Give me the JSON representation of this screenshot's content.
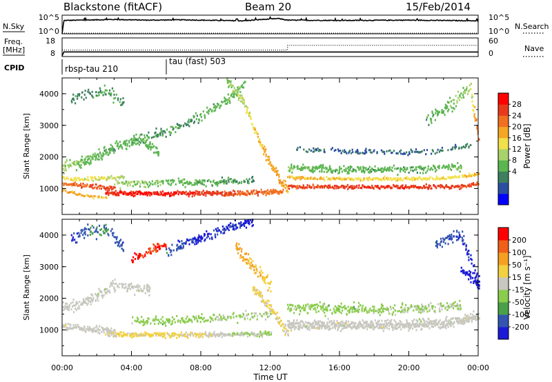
{
  "header": {
    "station": "Blackstone (fitACF)",
    "beam": "Beam 20",
    "date": "15/Feb/2014"
  },
  "top_panels": {
    "nsky_label": "N.Sky",
    "nsearch_label": "N.Search",
    "nsky_ticks": [
      "10^5",
      "10^0"
    ],
    "nsearch_ticks": [
      "10^5",
      "10^0"
    ],
    "freq_label": [
      "Freq.",
      "[MHz]"
    ],
    "freq_ticks": [
      "18",
      "8"
    ],
    "nave_label": "Nave",
    "nave_ticks": [
      "60",
      "0"
    ],
    "cpid_label": "CPID",
    "cpid_segments": [
      {
        "label": "rbsp-tau 210",
        "start_hour": 0
      },
      {
        "label": "tau (fast) 503",
        "start_hour": 6
      }
    ]
  },
  "colorbars": {
    "power": {
      "label": "Power [dB]",
      "ticks": [
        "28",
        "24",
        "20",
        "16",
        "12",
        "8",
        "4"
      ],
      "colors": [
        "#0000ff",
        "#2a4fa0",
        "#3d7f5f",
        "#5bb550",
        "#a8d26a",
        "#f2e04a",
        "#f5a623",
        "#f07020",
        "#e83a1a",
        "#ff0000"
      ]
    },
    "velocity": {
      "label": "Velocity [m s⁻¹]",
      "ticks": [
        "200",
        "100",
        "50",
        "15",
        "-15",
        "-50",
        "-100",
        "-200"
      ],
      "colors": [
        "#1a1ad8",
        "#3355b0",
        "#4aa048",
        "#8acc4c",
        "#c8c8c0",
        "#f2d040",
        "#f5a020",
        "#f06018",
        "#ff0000"
      ]
    }
  },
  "axes": {
    "ylabel": "Slant Range [km]",
    "xlabel": "Time UT",
    "y_ticks": [
      "4000",
      "3000",
      "2000",
      "1000"
    ],
    "x_ticks": [
      "00:00",
      "04:00",
      "08:00",
      "12:00",
      "16:00",
      "20:00",
      "00:00"
    ]
  },
  "chart_data": [
    {
      "type": "line",
      "title": "",
      "series": [
        {
          "name": "N.Sky",
          "x_hours": [
            0,
            0.1,
            1,
            3,
            5,
            7,
            9,
            10.5,
            11.5,
            12.5,
            13,
            16,
            20,
            24
          ],
          "values_log10": [
            0,
            4.2,
            4.3,
            4.5,
            4.3,
            4.4,
            4.2,
            4.1,
            4.5,
            4.8,
            4.3,
            4.2,
            4.3,
            4.1
          ]
        },
        {
          "name": "N.Search",
          "x_hours": [
            0,
            24
          ],
          "values_log10": [
            0,
            0
          ]
        }
      ],
      "ylim": [
        0,
        5
      ]
    },
    {
      "type": "line",
      "title": "",
      "series": [
        {
          "name": "Freq.",
          "x_hours": [
            0,
            0.1,
            6,
            13,
            24
          ],
          "values": [
            8,
            10.5,
            10.4,
            10.4,
            10.4
          ]
        },
        {
          "name": "Nave",
          "x_hours": [
            0,
            13,
            13.01,
            24
          ],
          "values": [
            22,
            22,
            40,
            40
          ]
        }
      ],
      "freq_ylim": [
        8,
        18
      ],
      "nave_ylim": [
        0,
        60
      ]
    },
    {
      "type": "heatmap",
      "title": "",
      "xlabel": "Time UT",
      "ylabel": "Slant Range [km]",
      "xlim_hours": [
        0,
        24
      ],
      "ylim_km": [
        180,
        4500
      ],
      "colorbar": "Power [dB]",
      "scatter_bands": [
        {
          "t": [
            0.0,
            1.5,
            3.0,
            4.5,
            5.5
          ],
          "r": [
            1700,
            1900,
            2300,
            2500,
            2200
          ],
          "v": [
            14,
            12,
            10,
            12,
            11
          ],
          "spread": 260,
          "density": 0.55
        },
        {
          "t": [
            0.0,
            1.0,
            2.0,
            3.0
          ],
          "r": [
            1150,
            1100,
            1050,
            1000
          ],
          "v": [
            24,
            25,
            26,
            27
          ],
          "spread": 110,
          "density": 0.95
        },
        {
          "t": [
            0.0,
            0.5,
            1.5,
            3.5
          ],
          "r": [
            1350,
            1300,
            1300,
            1350
          ],
          "v": [
            19,
            18,
            17,
            15
          ],
          "spread": 90,
          "density": 0.75
        },
        {
          "t": [
            0.0,
            0.7,
            1.5,
            2.5
          ],
          "r": [
            950,
            850,
            750,
            700
          ],
          "v": [
            22,
            21,
            20,
            19
          ],
          "spread": 60,
          "density": 0.6
        },
        {
          "t": [
            2.5,
            4.0,
            6.0,
            8.0,
            10.0,
            12.0,
            12.7
          ],
          "r": [
            860,
            850,
            845,
            840,
            855,
            880,
            900
          ],
          "v": [
            28,
            29,
            29,
            28,
            26,
            25,
            24
          ],
          "spread": 120,
          "density": 0.9
        },
        {
          "t": [
            3.0,
            6.0,
            9.0,
            11.0
          ],
          "r": [
            1150,
            1180,
            1200,
            1250
          ],
          "v": [
            14,
            12,
            10,
            9
          ],
          "spread": 160,
          "density": 0.5
        },
        {
          "t": [
            4.0,
            6.0,
            8.0,
            9.5,
            10.5
          ],
          "r": [
            2500,
            2800,
            3300,
            3800,
            4300
          ],
          "v": [
            10,
            9,
            10,
            11,
            12
          ],
          "spread": 250,
          "density": 0.35
        },
        {
          "t": [
            9.5,
            10.5,
            11.5,
            12.5,
            13.0
          ],
          "r": [
            4400,
            3700,
            2300,
            1300,
            1000
          ],
          "v": [
            12,
            16,
            20,
            22,
            20
          ],
          "spread": 220,
          "density": 0.7
        },
        {
          "t": [
            13.0,
            15.0,
            18.0,
            21.0,
            23.0,
            24.0
          ],
          "r": [
            1050,
            1050,
            1050,
            1050,
            1060,
            1150
          ],
          "v": [
            26,
            27,
            28,
            28,
            27,
            25
          ],
          "spread": 95,
          "density": 0.95
        },
        {
          "t": [
            13.0,
            16.0,
            19.0,
            22.0,
            24.0
          ],
          "r": [
            1350,
            1300,
            1300,
            1320,
            1450
          ],
          "v": [
            20,
            19,
            18,
            18,
            20
          ],
          "spread": 80,
          "density": 0.8
        },
        {
          "t": [
            13.0,
            16.0,
            20.0,
            23.0
          ],
          "r": [
            1650,
            1600,
            1600,
            1700
          ],
          "v": [
            12,
            11,
            10,
            12
          ],
          "spread": 180,
          "density": 0.55
        },
        {
          "t": [
            13.5,
            17.0,
            21.0,
            23.5
          ],
          "r": [
            2250,
            2150,
            2150,
            2350
          ],
          "v": [
            7,
            6,
            6,
            8
          ],
          "spread": 130,
          "density": 0.35
        },
        {
          "t": [
            21.0,
            22.5,
            23.5,
            24.0
          ],
          "r": [
            3200,
            3700,
            4200,
            2600
          ],
          "v": [
            10,
            12,
            14,
            26
          ],
          "spread": 350,
          "density": 0.35
        },
        {
          "t": [
            0.5,
            1.5,
            2.5,
            3.5
          ],
          "r": [
            3800,
            4000,
            4100,
            3700
          ],
          "v": [
            8,
            9,
            10,
            9
          ],
          "spread": 300,
          "density": 0.25
        }
      ]
    },
    {
      "type": "heatmap",
      "title": "",
      "xlabel": "Time UT",
      "ylabel": "Slant Range [km]",
      "xlim_hours": [
        0,
        24
      ],
      "ylim_km": [
        180,
        4500
      ],
      "colorbar": "Velocity [m s⁻¹]",
      "scatter_bands": [
        {
          "t": [
            0.0,
            1.0,
            2.0,
            3.0,
            5.0
          ],
          "r": [
            1700,
            1800,
            2100,
            2400,
            2300
          ],
          "v": [
            0,
            5,
            -5,
            0,
            0
          ],
          "spread": 250,
          "density": 0.5
        },
        {
          "t": [
            0.0,
            1.0,
            2.0,
            3.0
          ],
          "r": [
            1100,
            1050,
            1000,
            950
          ],
          "v": [
            0,
            0,
            0,
            0
          ],
          "spread": 150,
          "density": 0.95
        },
        {
          "t": [
            2.5,
            4.0,
            6.0,
            8.0,
            10.0,
            12.0
          ],
          "r": [
            860,
            850,
            845,
            840,
            855,
            880
          ],
          "v": [
            30,
            40,
            35,
            25,
            -20,
            -30
          ],
          "spread": 120,
          "density": 0.85
        },
        {
          "t": [
            4.0,
            6.0,
            8.0,
            10.0,
            12.0
          ],
          "r": [
            1250,
            1300,
            1350,
            1400,
            1500
          ],
          "v": [
            -40,
            -60,
            -45,
            -30,
            -20
          ],
          "spread": 200,
          "density": 0.45
        },
        {
          "t": [
            0.5,
            1.5,
            2.5,
            3.5
          ],
          "r": [
            3900,
            4100,
            4200,
            3600
          ],
          "v": [
            -200,
            -150,
            -120,
            -180
          ],
          "spread": 300,
          "density": 0.35
        },
        {
          "t": [
            4.0,
            5.0,
            6.0
          ],
          "r": [
            3200,
            3500,
            3700
          ],
          "v": [
            220,
            180,
            200
          ],
          "spread": 220,
          "density": 0.5
        },
        {
          "t": [
            6.0,
            8.0,
            10.0,
            11.0
          ],
          "r": [
            3500,
            3900,
            4300,
            4400
          ],
          "v": [
            -150,
            -200,
            -180,
            -220
          ],
          "spread": 250,
          "density": 0.45
        },
        {
          "t": [
            10.0,
            11.0,
            12.0
          ],
          "r": [
            3600,
            3000,
            2400
          ],
          "v": [
            100,
            80,
            60
          ],
          "spread": 300,
          "density": 0.5
        },
        {
          "t": [
            11.0,
            12.0,
            12.7,
            13.0
          ],
          "r": [
            2300,
            1700,
            1100,
            900
          ],
          "v": [
            40,
            30,
            30,
            20
          ],
          "spread": 220,
          "density": 0.8
        },
        {
          "t": [
            13.0,
            16.0,
            19.0,
            22.0,
            24.0
          ],
          "r": [
            1150,
            1150,
            1150,
            1200,
            1400
          ],
          "v": [
            0,
            0,
            0,
            0,
            0
          ],
          "spread": 230,
          "density": 0.95
        },
        {
          "t": [
            13.0,
            16.0,
            20.0,
            23.0
          ],
          "r": [
            1700,
            1650,
            1650,
            1750
          ],
          "v": [
            -40,
            -60,
            -30,
            -20
          ],
          "spread": 250,
          "density": 0.45
        },
        {
          "t": [
            21.5,
            23.0,
            24.0
          ],
          "r": [
            3700,
            4000,
            2500
          ],
          "v": [
            -150,
            -180,
            -230
          ],
          "spread": 300,
          "density": 0.4
        },
        {
          "t": [
            23.0,
            23.7,
            24.0
          ],
          "r": [
            2900,
            2600,
            2400
          ],
          "v": [
            -210,
            -230,
            -240
          ],
          "spread": 200,
          "density": 0.7
        }
      ]
    }
  ]
}
